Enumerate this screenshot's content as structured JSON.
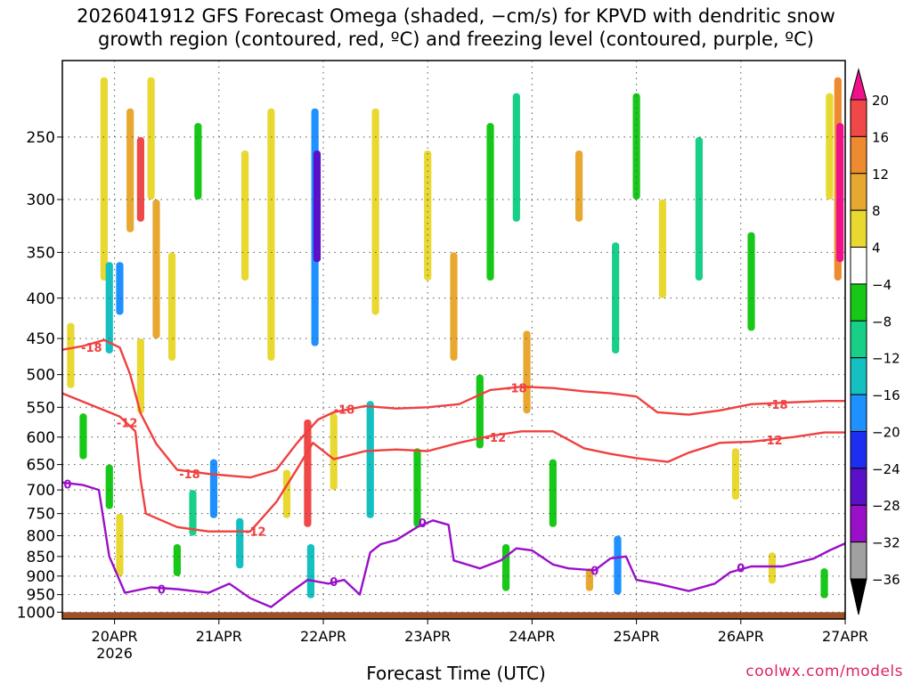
{
  "title_line1": "2026041912 GFS Forecast Omega (shaded, −cm/s) for KPVD with dendritic snow",
  "title_line2": "growth region (contoured, red, ºC) and freezing level (contoured, purple, ºC)",
  "credit": "coolwx.com/models",
  "colors": {
    "dgz_contour": "#f04040",
    "freezing_contour": "#9a10c8",
    "terrain": "#9c5028",
    "grid": "#555555"
  },
  "chart_data": {
    "type": "heatmap",
    "title": "2026041912 GFS Forecast Omega (shaded, −cm/s) for KPVD with dendritic snow growth region (contoured, red, ºC) and freezing level (contoured, purple, ºC)",
    "xlabel": "Forecast Time (UTC)",
    "ylabel": "",
    "x_range_days": [
      -0.5,
      7.0
    ],
    "y_axis": {
      "type": "pressure",
      "reversed": true,
      "min": 200,
      "max": 1020
    },
    "x_ticks": [
      {
        "label": "20APR",
        "value": 0
      },
      {
        "label": "21APR",
        "value": 1
      },
      {
        "label": "22APR",
        "value": 2
      },
      {
        "label": "23APR",
        "value": 3
      },
      {
        "label": "24APR",
        "value": 4
      },
      {
        "label": "25APR",
        "value": 5
      },
      {
        "label": "26APR",
        "value": 6
      },
      {
        "label": "27APR",
        "value": 7
      }
    ],
    "year_label": "2026",
    "y_ticks": [
      250,
      300,
      350,
      400,
      450,
      500,
      550,
      600,
      650,
      700,
      750,
      800,
      850,
      900,
      950,
      1000
    ],
    "colorbar": {
      "levels": [
        -36,
        -32,
        -28,
        -24,
        -20,
        -16,
        -12,
        -8,
        -4,
        4,
        8,
        12,
        16,
        20
      ],
      "labels": [
        "20",
        "16",
        "12",
        "8",
        "4",
        "−4",
        "−8",
        "−12",
        "−16",
        "−20",
        "−24",
        "−28",
        "−32",
        "−36"
      ],
      "colors": [
        "#808080",
        "#a0a0a0",
        "#9a10c8",
        "#5a10c8",
        "#1c2ff0",
        "#1e90ff",
        "#14c0c0",
        "#18cf88",
        "#18c818",
        "#ffffff",
        "#e8d830",
        "#e8a830",
        "#ee8a30",
        "#f04848",
        "#f0108a"
      ]
    },
    "omega_cells": [
      {
        "t": -0.42,
        "p0": 430,
        "p1": 520,
        "v": 6
      },
      {
        "t": -0.3,
        "p0": 560,
        "p1": 640,
        "v": -8
      },
      {
        "t": -0.1,
        "p0": 210,
        "p1": 380,
        "v": 6
      },
      {
        "t": -0.05,
        "p0": 360,
        "p1": 470,
        "v": -14
      },
      {
        "t": -0.05,
        "p0": 650,
        "p1": 740,
        "v": -8
      },
      {
        "t": 0.05,
        "p0": 360,
        "p1": 420,
        "v": -20
      },
      {
        "t": 0.05,
        "p0": 750,
        "p1": 900,
        "v": 6
      },
      {
        "t": 0.15,
        "p0": 230,
        "p1": 330,
        "v": 10
      },
      {
        "t": 0.25,
        "p0": 250,
        "p1": 320,
        "v": 18
      },
      {
        "t": 0.25,
        "p0": 450,
        "p1": 560,
        "v": 6
      },
      {
        "t": 0.35,
        "p0": 210,
        "p1": 300,
        "v": 6
      },
      {
        "t": 0.4,
        "p0": 300,
        "p1": 450,
        "v": 10
      },
      {
        "t": 0.55,
        "p0": 350,
        "p1": 480,
        "v": 6
      },
      {
        "t": 0.6,
        "p0": 820,
        "p1": 900,
        "v": -8
      },
      {
        "t": 0.75,
        "p0": 700,
        "p1": 800,
        "v": -12
      },
      {
        "t": 0.8,
        "p0": 240,
        "p1": 300,
        "v": -6
      },
      {
        "t": 0.95,
        "p0": 640,
        "p1": 760,
        "v": -20
      },
      {
        "t": 1.2,
        "p0": 760,
        "p1": 880,
        "v": -14
      },
      {
        "t": 1.25,
        "p0": 260,
        "p1": 380,
        "v": 6
      },
      {
        "t": 1.5,
        "p0": 230,
        "p1": 480,
        "v": 6
      },
      {
        "t": 1.65,
        "p0": 660,
        "p1": 760,
        "v": 6
      },
      {
        "t": 1.85,
        "p0": 570,
        "p1": 780,
        "v": 18
      },
      {
        "t": 1.88,
        "p0": 820,
        "p1": 960,
        "v": -16
      },
      {
        "t": 1.92,
        "p0": 230,
        "p1": 460,
        "v": -20
      },
      {
        "t": 1.94,
        "p0": 260,
        "p1": 360,
        "v": -26
      },
      {
        "t": 2.1,
        "p0": 560,
        "p1": 700,
        "v": 6
      },
      {
        "t": 2.45,
        "p0": 540,
        "p1": 760,
        "v": -14
      },
      {
        "t": 2.5,
        "p0": 230,
        "p1": 420,
        "v": 6
      },
      {
        "t": 2.9,
        "p0": 620,
        "p1": 780,
        "v": -8
      },
      {
        "t": 3.0,
        "p0": 260,
        "p1": 380,
        "v": 6
      },
      {
        "t": 3.25,
        "p0": 350,
        "p1": 480,
        "v": 10
      },
      {
        "t": 3.5,
        "p0": 500,
        "p1": 620,
        "v": -8
      },
      {
        "t": 3.6,
        "p0": 240,
        "p1": 380,
        "v": -8
      },
      {
        "t": 3.75,
        "p0": 820,
        "p1": 940,
        "v": -8
      },
      {
        "t": 3.85,
        "p0": 220,
        "p1": 320,
        "v": -12
      },
      {
        "t": 3.95,
        "p0": 440,
        "p1": 560,
        "v": 10
      },
      {
        "t": 4.2,
        "p0": 640,
        "p1": 780,
        "v": -8
      },
      {
        "t": 4.45,
        "p0": 260,
        "p1": 320,
        "v": 10
      },
      {
        "t": 4.55,
        "p0": 880,
        "p1": 940,
        "v": 8
      },
      {
        "t": 4.8,
        "p0": 340,
        "p1": 470,
        "v": -10
      },
      {
        "t": 4.82,
        "p0": 800,
        "p1": 950,
        "v": -20
      },
      {
        "t": 5.0,
        "p0": 220,
        "p1": 300,
        "v": -8
      },
      {
        "t": 5.25,
        "p0": 300,
        "p1": 400,
        "v": 6
      },
      {
        "t": 5.6,
        "p0": 250,
        "p1": 380,
        "v": -12
      },
      {
        "t": 5.95,
        "p0": 620,
        "p1": 720,
        "v": 6
      },
      {
        "t": 6.1,
        "p0": 330,
        "p1": 440,
        "v": -8
      },
      {
        "t": 6.3,
        "p0": 840,
        "p1": 920,
        "v": 6
      },
      {
        "t": 6.8,
        "p0": 880,
        "p1": 960,
        "v": -8
      },
      {
        "t": 6.85,
        "p0": 220,
        "p1": 300,
        "v": 6
      },
      {
        "t": 6.93,
        "p0": 210,
        "p1": 380,
        "v": 12
      },
      {
        "t": 6.95,
        "p0": 240,
        "p1": 360,
        "v": 20
      }
    ],
    "contours": [
      {
        "name": "dgz -18 upper",
        "label": "-18",
        "color": "#f04040",
        "points": [
          [
            -0.5,
            465
          ],
          [
            -0.3,
            460
          ],
          [
            -0.1,
            452
          ],
          [
            0.05,
            462
          ],
          [
            0.15,
            500
          ],
          [
            0.25,
            560
          ],
          [
            0.4,
            612
          ],
          [
            0.6,
            660
          ],
          [
            0.9,
            668
          ],
          [
            1.3,
            675
          ],
          [
            1.55,
            660
          ],
          [
            1.75,
            610
          ],
          [
            1.95,
            570
          ],
          [
            2.1,
            558
          ],
          [
            2.4,
            548
          ],
          [
            2.7,
            552
          ],
          [
            3.0,
            550
          ],
          [
            3.3,
            545
          ],
          [
            3.6,
            523
          ],
          [
            3.9,
            518
          ],
          [
            4.2,
            520
          ],
          [
            4.5,
            525
          ],
          [
            4.75,
            528
          ],
          [
            5.0,
            533
          ],
          [
            5.2,
            558
          ],
          [
            5.5,
            562
          ],
          [
            5.8,
            555
          ],
          [
            6.1,
            545
          ],
          [
            6.5,
            542
          ],
          [
            6.8,
            540
          ],
          [
            7.0,
            540
          ]
        ]
      },
      {
        "name": "dgz -12 lower",
        "label": "-12",
        "color": "#f04040",
        "points": [
          [
            -0.5,
            528
          ],
          [
            -0.2,
            548
          ],
          [
            0.05,
            565
          ],
          [
            0.2,
            590
          ],
          [
            0.25,
            680
          ],
          [
            0.3,
            750
          ],
          [
            0.6,
            780
          ],
          [
            0.9,
            790
          ],
          [
            1.3,
            790
          ],
          [
            1.55,
            725
          ],
          [
            1.75,
            658
          ],
          [
            1.9,
            610
          ],
          [
            2.1,
            640
          ],
          [
            2.4,
            625
          ],
          [
            2.7,
            622
          ],
          [
            3.0,
            625
          ],
          [
            3.3,
            610
          ],
          [
            3.6,
            598
          ],
          [
            3.9,
            590
          ],
          [
            4.2,
            590
          ],
          [
            4.5,
            620
          ],
          [
            4.75,
            630
          ],
          [
            5.0,
            638
          ],
          [
            5.3,
            645
          ],
          [
            5.5,
            628
          ],
          [
            5.8,
            610
          ],
          [
            6.1,
            608
          ],
          [
            6.5,
            600
          ],
          [
            6.8,
            592
          ],
          [
            7.0,
            592
          ]
        ]
      },
      {
        "name": "freezing level 0",
        "label": "0",
        "color": "#9a10c8",
        "points": [
          [
            -0.5,
            685
          ],
          [
            -0.3,
            690
          ],
          [
            -0.15,
            700
          ],
          [
            -0.05,
            850
          ],
          [
            0.1,
            945
          ],
          [
            0.35,
            930
          ],
          [
            0.6,
            935
          ],
          [
            0.9,
            945
          ],
          [
            1.1,
            920
          ],
          [
            1.3,
            960
          ],
          [
            1.5,
            985
          ],
          [
            1.7,
            940
          ],
          [
            1.85,
            910
          ],
          [
            2.05,
            920
          ],
          [
            2.2,
            910
          ],
          [
            2.35,
            950
          ],
          [
            2.45,
            840
          ],
          [
            2.55,
            820
          ],
          [
            2.7,
            810
          ],
          [
            2.9,
            780
          ],
          [
            3.05,
            765
          ],
          [
            3.2,
            775
          ],
          [
            3.25,
            860
          ],
          [
            3.5,
            880
          ],
          [
            3.7,
            860
          ],
          [
            3.85,
            830
          ],
          [
            4.0,
            835
          ],
          [
            4.2,
            870
          ],
          [
            4.35,
            880
          ],
          [
            4.6,
            885
          ],
          [
            4.75,
            855
          ],
          [
            4.9,
            850
          ],
          [
            5.0,
            910
          ],
          [
            5.2,
            920
          ],
          [
            5.5,
            940
          ],
          [
            5.75,
            920
          ],
          [
            5.9,
            890
          ],
          [
            6.1,
            875
          ],
          [
            6.4,
            875
          ],
          [
            6.7,
            855
          ],
          [
            6.85,
            835
          ],
          [
            7.0,
            818
          ]
        ]
      }
    ],
    "contour_labels": [
      {
        "text": "-18",
        "t": -0.22,
        "p": 462,
        "series": "dgz"
      },
      {
        "text": "-12",
        "t": 0.12,
        "p": 575,
        "series": "dgz"
      },
      {
        "text": "-18",
        "t": 0.72,
        "p": 668,
        "series": "dgz"
      },
      {
        "text": "-12",
        "t": 1.35,
        "p": 790,
        "series": "dgz"
      },
      {
        "text": "-18",
        "t": 2.2,
        "p": 553,
        "series": "dgz"
      },
      {
        "text": "-12",
        "t": 3.65,
        "p": 600,
        "series": "dgz"
      },
      {
        "text": "-18",
        "t": 3.85,
        "p": 520,
        "series": "dgz"
      },
      {
        "text": "-18",
        "t": 6.35,
        "p": 545,
        "series": "dgz"
      },
      {
        "text": "-12",
        "t": 6.3,
        "p": 605,
        "series": "dgz"
      },
      {
        "text": "0",
        "t": -0.45,
        "p": 688,
        "series": "freezing"
      },
      {
        "text": "0",
        "t": 0.45,
        "p": 935,
        "series": "freezing"
      },
      {
        "text": "0",
        "t": 2.1,
        "p": 915,
        "series": "freezing"
      },
      {
        "text": "0",
        "t": 2.95,
        "p": 770,
        "series": "freezing"
      },
      {
        "text": "0",
        "t": 4.6,
        "p": 885,
        "series": "freezing"
      },
      {
        "text": "0",
        "t": 6.0,
        "p": 878,
        "series": "freezing"
      }
    ],
    "terrain_pressure": 1000
  }
}
